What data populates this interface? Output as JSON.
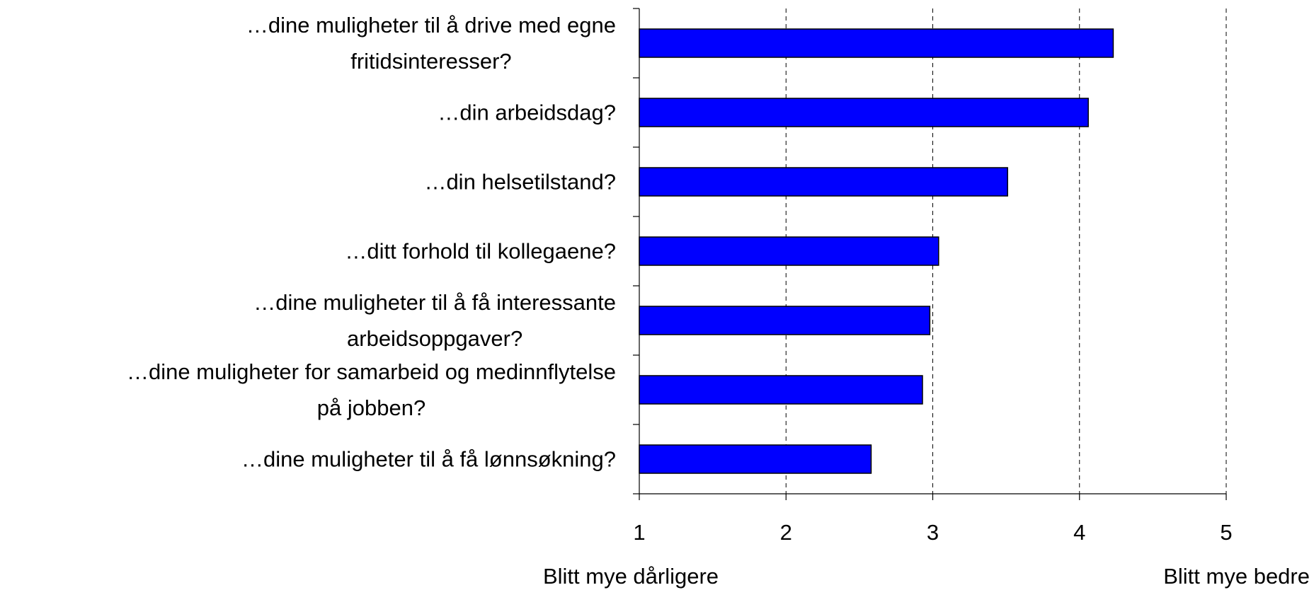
{
  "chart_data": {
    "type": "bar",
    "orientation": "horizontal",
    "categories": [
      "…dine muligheter til å drive med egne\nfritidsinteresser?",
      "…din arbeidsdag?",
      "…din helsetilstand?",
      "…ditt forhold til kollegaene?",
      "…dine muligheter til å få interessante\narbeidsoppgaver?",
      "…dine muligheter for samarbeid og medinnflytelse\npå jobben?",
      "…dine muligheter til å få lønnsøkning?"
    ],
    "values": [
      4.23,
      4.06,
      3.51,
      3.04,
      2.98,
      2.93,
      2.58
    ],
    "color": "#0000ff",
    "xlim": [
      1,
      5
    ],
    "xticks": [
      1,
      2,
      3,
      4,
      5
    ],
    "grid": true,
    "x_low_label": "Blitt mye dårligere",
    "x_high_label": "Blitt mye bedre"
  }
}
